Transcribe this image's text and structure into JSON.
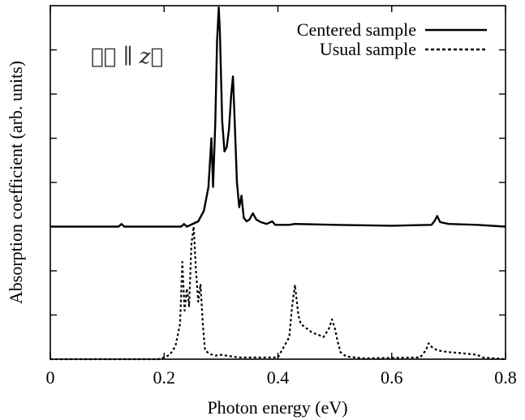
{
  "chart_data": {
    "type": "line",
    "title": "",
    "xlabel": "Photon energy (eV)",
    "ylabel": "Absorption coefficient (arb. units)",
    "xlim": [
      0,
      0.8
    ],
    "ylim": [
      -1.5,
      2.5
    ],
    "x_ticks": [
      "0",
      "0.2",
      "0.4",
      "0.6",
      "0.8"
    ],
    "y_tick_labels_shown": false,
    "grid": false,
    "legend_position": "top-right",
    "annotation": "ℰ⃗ ∥ z⃗",
    "series": [
      {
        "name": "Centered sample",
        "style": "solid",
        "offset": 0,
        "x": [
          0,
          0.1,
          0.12,
          0.125,
          0.13,
          0.2,
          0.23,
          0.235,
          0.24,
          0.26,
          0.27,
          0.278,
          0.283,
          0.286,
          0.29,
          0.293,
          0.296,
          0.298,
          0.302,
          0.306,
          0.31,
          0.314,
          0.318,
          0.321,
          0.324,
          0.328,
          0.332,
          0.336,
          0.34,
          0.345,
          0.35,
          0.356,
          0.362,
          0.37,
          0.38,
          0.39,
          0.395,
          0.4,
          0.42,
          0.43,
          0.5,
          0.6,
          0.67,
          0.675,
          0.68,
          0.685,
          0.7,
          0.75,
          0.8
        ],
        "values": [
          0,
          0,
          0,
          0.03,
          0,
          0,
          0,
          0.03,
          0,
          0.06,
          0.18,
          0.45,
          1.0,
          0.45,
          1.2,
          2.1,
          2.48,
          2.2,
          1.2,
          0.85,
          0.9,
          1.1,
          1.5,
          1.7,
          1.2,
          0.5,
          0.22,
          0.35,
          0.1,
          0.06,
          0.08,
          0.15,
          0.08,
          0.05,
          0.03,
          0.06,
          0.02,
          0.02,
          0.02,
          0.03,
          0.02,
          0.01,
          0.02,
          0.06,
          0.12,
          0.05,
          0.03,
          0.02,
          0.0
        ]
      },
      {
        "name": "Usual sample",
        "style": "dashed",
        "offset": -1.5,
        "x": [
          0,
          0.19,
          0.2,
          0.21,
          0.22,
          0.228,
          0.232,
          0.236,
          0.24,
          0.244,
          0.248,
          0.252,
          0.256,
          0.26,
          0.264,
          0.268,
          0.272,
          0.28,
          0.29,
          0.3,
          0.33,
          0.4,
          0.42,
          0.425,
          0.43,
          0.436,
          0.44,
          0.45,
          0.46,
          0.47,
          0.48,
          0.49,
          0.495,
          0.5,
          0.505,
          0.51,
          0.52,
          0.55,
          0.65,
          0.66,
          0.665,
          0.67,
          0.68,
          0.7,
          0.72,
          0.75,
          0.76,
          0.8
        ],
        "values": [
          0,
          0,
          0.02,
          0.05,
          0.15,
          0.4,
          1.1,
          0.55,
          0.8,
          0.6,
          1.3,
          1.5,
          1.0,
          0.65,
          0.85,
          0.4,
          0.1,
          0.06,
          0.04,
          0.05,
          0.02,
          0.02,
          0.25,
          0.6,
          0.84,
          0.5,
          0.4,
          0.35,
          0.3,
          0.28,
          0.25,
          0.35,
          0.45,
          0.35,
          0.2,
          0.08,
          0.03,
          0.01,
          0.02,
          0.1,
          0.18,
          0.14,
          0.1,
          0.08,
          0.07,
          0.05,
          0.02,
          0.0
        ]
      }
    ]
  }
}
